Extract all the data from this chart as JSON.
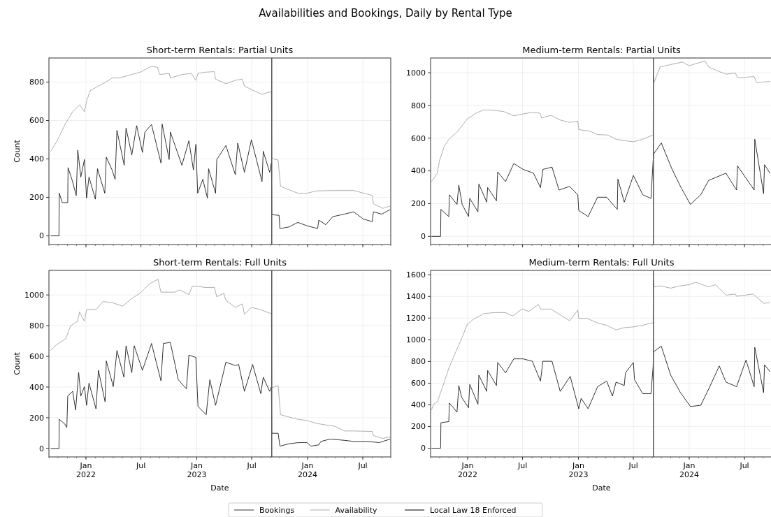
{
  "chart_data": [
    {
      "type": "line",
      "title": "Short-term Rentals: Partial Units",
      "ylabel": "Count",
      "annotations": [
        "Availabilities and Bookings, Daily by Rental Type"
      ],
      "legend": "bottom",
      "grid": true,
      "tick_labels": "y",
      "xlim": [
        "2021-09-01",
        "2024-10-01"
      ],
      "xticks": [
        {
          "value": "2022-01-01",
          "label": null
        },
        {
          "value": "2022-07-01",
          "label": null
        },
        {
          "value": "2023-01-01",
          "label": null
        },
        {
          "value": "2023-07-01",
          "label": null
        },
        {
          "value": "2024-01-01",
          "label": null
        },
        {
          "value": "2024-07-01",
          "label": null
        }
      ],
      "ylim": [
        -45,
        925
      ],
      "yticks": [
        0,
        200,
        400,
        600,
        800
      ],
      "ref_lines": [
        {
          "axis": "x",
          "value": "2023-09-05",
          "label": "Local Law 18 Enforced",
          "color": "#555555"
        }
      ],
      "series": [
        {
          "name": "Bookings",
          "color": "#000000",
          "x": [
            "2021-09-07",
            "2021-10-04",
            "2021-10-05",
            "2021-10-15",
            "2021-11-02",
            "2021-11-03",
            "2021-11-18",
            "2021-11-30",
            "2021-12-05",
            "2021-12-15",
            "2021-12-27",
            "2022-01-03",
            "2022-01-11",
            "2022-02-01",
            "2022-02-08",
            "2022-03-04",
            "2022-03-09",
            "2022-03-28",
            "2022-04-07",
            "2022-04-13",
            "2022-05-07",
            "2022-05-13",
            "2022-06-01",
            "2022-06-17",
            "2022-07-06",
            "2022-07-14",
            "2022-08-05",
            "2022-09-05",
            "2022-09-09",
            "2022-10-02",
            "2022-10-06",
            "2022-11-13",
            "2022-12-06",
            "2022-12-21",
            "2022-12-29",
            "2023-01-04",
            "2023-01-21",
            "2023-02-05",
            "2023-02-09",
            "2023-03-04",
            "2023-03-08",
            "2023-04-07",
            "2023-05-08",
            "2023-05-16",
            "2023-06-07",
            "2023-06-30",
            "2023-08-04",
            "2023-08-08",
            "2023-08-29",
            "2023-09-04",
            "2023-09-05",
            "2023-09-29",
            "2023-10-02",
            "2023-10-31",
            "2023-11-30",
            "2023-12-31",
            "2024-02-03",
            "2024-02-07",
            "2024-03-01",
            "2024-03-24",
            "2024-05-01",
            "2024-06-01",
            "2024-07-02",
            "2024-08-01",
            "2024-08-05",
            "2024-09-01",
            "2024-09-29"
          ],
          "values": [
            0,
            0,
            222,
            173,
            173,
            355,
            282,
            210,
            446,
            306,
            397,
            197,
            306,
            191,
            349,
            222,
            409,
            343,
            294,
            549,
            367,
            561,
            421,
            573,
            434,
            540,
            579,
            379,
            581,
            397,
            540,
            367,
            494,
            343,
            476,
            222,
            294,
            197,
            349,
            222,
            397,
            470,
            318,
            482,
            331,
            500,
            282,
            440,
            331,
            380,
            110,
            107,
            38,
            46,
            70,
            52,
            38,
            82,
            58,
            100,
            113,
            125,
            88,
            74,
            125,
            113,
            137
          ]
        },
        {
          "name": "Availability",
          "color": "#999999",
          "x": [
            "2021-09-07",
            "2021-09-26",
            "2021-10-26",
            "2021-11-18",
            "2021-12-11",
            "2021-12-27",
            "2022-01-03",
            "2022-01-15",
            "2022-02-11",
            "2022-03-05",
            "2022-03-28",
            "2022-04-20",
            "2022-06-01",
            "2022-06-28",
            "2022-08-05",
            "2022-08-25",
            "2022-09-01",
            "2022-10-02",
            "2022-10-06",
            "2022-11-13",
            "2022-12-14",
            "2022-12-29",
            "2023-01-05",
            "2023-01-28",
            "2023-02-28",
            "2023-03-04",
            "2023-04-07",
            "2023-05-08",
            "2023-05-31",
            "2023-06-07",
            "2023-07-08",
            "2023-08-04",
            "2023-08-29",
            "2023-09-04",
            "2023-09-05",
            "2023-09-26",
            "2023-10-04",
            "2023-10-31",
            "2023-11-30",
            "2023-12-31",
            "2024-01-31",
            "2024-04-01",
            "2024-06-01",
            "2024-08-01",
            "2024-08-05",
            "2024-09-05",
            "2024-09-29"
          ],
          "values": [
            440,
            488,
            585,
            645,
            682,
            645,
            700,
            755,
            779,
            797,
            821,
            821,
            839,
            851,
            882,
            876,
            839,
            845,
            821,
            839,
            845,
            809,
            845,
            851,
            854,
            815,
            791,
            809,
            815,
            779,
            755,
            736,
            748,
            748,
            403,
            394,
            258,
            240,
            222,
            222,
            234,
            236,
            236,
            210,
            167,
            143,
            155
          ]
        }
      ]
    },
    {
      "type": "line",
      "title": "Medium-term Rentals: Partial Units",
      "grid": true,
      "tick_labels": "y",
      "xlim": [
        "2021-09-01",
        "2024-10-01"
      ],
      "xticks": [
        {
          "value": "2022-01-01",
          "label": null
        },
        {
          "value": "2022-07-01",
          "label": null
        },
        {
          "value": "2023-01-01",
          "label": null
        },
        {
          "value": "2023-07-01",
          "label": null
        },
        {
          "value": "2024-01-01",
          "label": null
        },
        {
          "value": "2024-07-01",
          "label": null
        }
      ],
      "ylim": [
        -50,
        1090
      ],
      "yticks": [
        0,
        200,
        400,
        600,
        800,
        1000
      ],
      "ref_lines": [
        {
          "axis": "x",
          "value": "2023-09-05",
          "color": "#555555"
        }
      ],
      "series": [
        {
          "color": "#000000",
          "x": [
            "2021-09-04",
            "2021-10-04",
            "2021-10-05",
            "2021-10-31",
            "2021-11-02",
            "2021-11-27",
            "2021-12-03",
            "2021-12-14",
            "2022-01-04",
            "2022-01-08",
            "2022-02-04",
            "2022-02-07",
            "2022-03-05",
            "2022-03-08",
            "2022-04-06",
            "2022-04-10",
            "2022-05-06",
            "2022-06-02",
            "2022-07-03",
            "2022-08-06",
            "2022-08-29",
            "2022-09-06",
            "2022-10-06",
            "2022-10-29",
            "2022-12-03",
            "2022-12-30",
            "2023-01-02",
            "2023-02-02",
            "2023-03-05",
            "2023-04-04",
            "2023-05-09",
            "2023-05-11",
            "2023-06-01",
            "2023-07-01",
            "2023-08-01",
            "2023-08-28",
            "2023-09-04",
            "2023-09-06",
            "2023-10-01",
            "2023-11-04",
            "2023-12-05",
            "2024-01-05",
            "2024-02-08",
            "2024-03-05",
            "2024-05-01",
            "2024-06-05",
            "2024-06-08",
            "2024-08-02",
            "2024-08-04",
            "2024-09-02",
            "2024-09-05",
            "2024-09-23"
          ],
          "values": [
            0,
            0,
            165,
            121,
            254,
            195,
            313,
            195,
            121,
            232,
            150,
            320,
            209,
            298,
            217,
            394,
            335,
            445,
            409,
            386,
            298,
            409,
            423,
            283,
            305,
            254,
            158,
            121,
            239,
            239,
            165,
            350,
            209,
            372,
            254,
            232,
            460,
            504,
            571,
            416,
            298,
            195,
            254,
            342,
            386,
            283,
            431,
            283,
            593,
            261,
            438,
            386
          ]
        },
        {
          "color": "#999999",
          "x": [
            "2021-09-04",
            "2021-09-23",
            "2021-09-30",
            "2021-10-16",
            "2021-10-31",
            "2021-11-27",
            "2021-12-31",
            "2022-01-31",
            "2022-02-23",
            "2022-03-29",
            "2022-04-29",
            "2022-06-02",
            "2022-07-03",
            "2022-08-02",
            "2022-08-28",
            "2022-09-02",
            "2022-10-03",
            "2022-11-02",
            "2022-12-03",
            "2022-12-30",
            "2023-01-02",
            "2023-02-06",
            "2023-03-05",
            "2023-04-08",
            "2023-05-05",
            "2023-06-01",
            "2023-07-01",
            "2023-08-01",
            "2023-08-28",
            "2023-09-04",
            "2023-09-05",
            "2023-09-07",
            "2023-09-27",
            "2023-11-01",
            "2023-12-09",
            "2024-01-01",
            "2024-02-22",
            "2024-03-05",
            "2024-04-01",
            "2024-05-01",
            "2024-06-01",
            "2024-06-08",
            "2024-08-02",
            "2024-08-10",
            "2024-09-23"
          ],
          "values": [
            335,
            386,
            460,
            549,
            593,
            637,
            718,
            755,
            773,
            770,
            763,
            737,
            748,
            758,
            752,
            723,
            740,
            711,
            696,
            704,
            652,
            644,
            622,
            619,
            593,
            585,
            578,
            593,
            615,
            615,
            976,
            939,
            1035,
            1050,
            1065,
            1043,
            1072,
            1035,
            1013,
            991,
            998,
            969,
            976,
            939,
            947
          ]
        }
      ]
    },
    {
      "type": "line",
      "title": "Short-term Rentals: Full Units",
      "xlabel": "Date",
      "ylabel": "Count",
      "grid": true,
      "xlim": [
        "2021-09-01",
        "2024-10-01"
      ],
      "xticks": [
        {
          "value": "2022-01-01",
          "label": "Jan\n2022"
        },
        {
          "value": "2022-07-01",
          "label": "Jul"
        },
        {
          "value": "2023-01-01",
          "label": "Jan\n2023"
        },
        {
          "value": "2023-07-01",
          "label": "Jul"
        },
        {
          "value": "2024-01-01",
          "label": "Jan\n2024"
        },
        {
          "value": "2024-07-01",
          "label": "Jul"
        }
      ],
      "ylim": [
        -55,
        1160
      ],
      "yticks": [
        0,
        200,
        400,
        600,
        800,
        1000
      ],
      "ref_lines": [
        {
          "axis": "x",
          "value": "2023-09-05",
          "color": "#555555"
        }
      ],
      "series": [
        {
          "color": "#000000",
          "x": [
            "2021-09-07",
            "2021-10-04",
            "2021-10-05",
            "2021-10-23",
            "2021-10-30",
            "2021-11-02",
            "2021-11-18",
            "2021-11-28",
            "2021-12-08",
            "2021-12-15",
            "2021-12-27",
            "2022-01-03",
            "2022-01-11",
            "2022-02-03",
            "2022-02-11",
            "2022-03-05",
            "2022-03-09",
            "2022-04-01",
            "2022-04-13",
            "2022-05-06",
            "2022-05-13",
            "2022-06-01",
            "2022-06-09",
            "2022-07-06",
            "2022-08-05",
            "2022-09-05",
            "2022-09-13",
            "2022-10-06",
            "2022-11-01",
            "2022-11-28",
            "2022-12-06",
            "2022-12-29",
            "2023-01-05",
            "2023-02-01",
            "2023-02-13",
            "2023-03-04",
            "2023-04-07",
            "2023-05-08",
            "2023-05-19",
            "2023-06-07",
            "2023-07-04",
            "2023-07-31",
            "2023-08-08",
            "2023-08-29",
            "2023-09-04",
            "2023-09-05",
            "2023-09-26",
            "2023-10-02",
            "2023-10-31",
            "2023-11-30",
            "2023-12-31",
            "2024-01-11",
            "2024-02-07",
            "2024-02-14",
            "2024-03-16",
            "2024-05-01",
            "2024-06-01",
            "2024-07-17",
            "2024-08-24",
            "2024-09-29"
          ],
          "values": [
            0,
            0,
            190,
            160,
            137,
            342,
            372,
            251,
            494,
            342,
            403,
            281,
            426,
            258,
            509,
            304,
            570,
            403,
            638,
            464,
            669,
            494,
            669,
            509,
            684,
            441,
            684,
            691,
            448,
            388,
            608,
            593,
            274,
            220,
            448,
            281,
            562,
            540,
            547,
            372,
            547,
            357,
            464,
            372,
            400,
            99,
            99,
            15,
            30,
            38,
            38,
            15,
            23,
            46,
            61,
            53,
            46,
            46,
            38,
            61
          ]
        },
        {
          "color": "#999999",
          "x": [
            "2021-09-07",
            "2021-09-26",
            "2021-10-26",
            "2021-11-11",
            "2021-12-04",
            "2021-12-11",
            "2021-12-27",
            "2022-01-03",
            "2022-02-03",
            "2022-02-26",
            "2022-03-28",
            "2022-05-02",
            "2022-05-29",
            "2022-06-28",
            "2022-07-29",
            "2022-08-26",
            "2022-09-05",
            "2022-10-21",
            "2022-11-05",
            "2022-12-06",
            "2022-12-17",
            "2023-01-02",
            "2023-01-28",
            "2023-02-28",
            "2023-03-08",
            "2023-03-31",
            "2023-04-07",
            "2023-05-08",
            "2023-05-31",
            "2023-06-07",
            "2023-06-30",
            "2023-07-31",
            "2023-08-29",
            "2023-09-04",
            "2023-09-05",
            "2023-09-26",
            "2023-10-04",
            "2023-10-31",
            "2023-11-30",
            "2023-12-31",
            "2024-01-31",
            "2024-04-01",
            "2024-05-01",
            "2024-06-01",
            "2024-08-01",
            "2024-08-05",
            "2024-09-05",
            "2024-09-29"
          ],
          "values": [
            638,
            676,
            714,
            798,
            828,
            889,
            828,
            904,
            904,
            957,
            950,
            927,
            973,
            1011,
            1071,
            1102,
            1018,
            1018,
            1033,
            1003,
            1056,
            1056,
            1049,
            1049,
            988,
            1011,
            965,
            919,
            942,
            874,
            919,
            904,
            881,
            881,
            395,
            410,
            220,
            205,
            190,
            182,
            163,
            144,
            114,
            114,
            111,
            84,
            65,
            76
          ]
        }
      ]
    },
    {
      "type": "line",
      "title": "Medium-term Rentals: Full Units",
      "xlabel": "Date",
      "grid": true,
      "xlim": [
        "2021-09-01",
        "2024-10-01"
      ],
      "xticks": [
        {
          "value": "2022-01-01",
          "label": "Jan\n2022"
        },
        {
          "value": "2022-07-01",
          "label": "Jul"
        },
        {
          "value": "2023-01-01",
          "label": "Jan\n2023"
        },
        {
          "value": "2023-07-01",
          "label": "Jul"
        },
        {
          "value": "2024-01-01",
          "label": "Jan\n2024"
        },
        {
          "value": "2024-07-01",
          "label": "Jul"
        }
      ],
      "ylim": [
        -80,
        1640
      ],
      "yticks": [
        0,
        200,
        400,
        600,
        800,
        1000,
        1200,
        1400,
        1600
      ],
      "ref_lines": [
        {
          "axis": "x",
          "value": "2023-09-05",
          "color": "#555555"
        }
      ],
      "series": [
        {
          "color": "#000000",
          "x": [
            "2021-09-04",
            "2021-10-04",
            "2021-10-05",
            "2021-10-31",
            "2021-11-02",
            "2021-11-27",
            "2021-12-03",
            "2021-12-12",
            "2022-01-04",
            "2022-01-08",
            "2022-02-04",
            "2022-02-07",
            "2022-03-05",
            "2022-03-08",
            "2022-04-06",
            "2022-04-10",
            "2022-05-06",
            "2022-06-02",
            "2022-07-03",
            "2022-08-02",
            "2022-08-29",
            "2022-09-06",
            "2022-10-06",
            "2022-11-02",
            "2022-12-05",
            "2023-01-02",
            "2023-01-10",
            "2023-02-02",
            "2023-03-05",
            "2023-04-04",
            "2023-04-23",
            "2023-05-05",
            "2023-06-01",
            "2023-06-05",
            "2023-07-01",
            "2023-07-05",
            "2023-08-01",
            "2023-08-28",
            "2023-09-04",
            "2023-09-05",
            "2023-10-01",
            "2023-11-01",
            "2023-12-03",
            "2024-01-05",
            "2024-02-08",
            "2024-03-05",
            "2024-04-09",
            "2024-05-01",
            "2024-06-05",
            "2024-07-06",
            "2024-08-02",
            "2024-08-04",
            "2024-09-02",
            "2024-09-05",
            "2024-09-23"
          ],
          "values": [
            0,
            0,
            235,
            246,
            417,
            332,
            578,
            471,
            374,
            588,
            406,
            674,
            524,
            717,
            578,
            791,
            695,
            824,
            824,
            802,
            620,
            802,
            802,
            524,
            663,
            364,
            460,
            364,
            567,
            620,
            481,
            610,
            578,
            695,
            791,
            631,
            503,
            503,
            749,
            888,
            941,
            674,
            513,
            385,
            396,
            545,
            759,
            610,
            567,
            813,
            567,
            930,
            513,
            770,
            706
          ]
        },
        {
          "color": "#999999",
          "x": [
            "2021-09-04",
            "2021-09-11",
            "2021-09-23",
            "2021-10-04",
            "2021-10-16",
            "2021-10-31",
            "2021-11-23",
            "2021-12-16",
            "2021-12-31",
            "2022-01-19",
            "2022-02-23",
            "2022-03-29",
            "2022-05-06",
            "2022-05-29",
            "2022-06-29",
            "2022-07-22",
            "2022-08-22",
            "2022-08-30",
            "2022-10-03",
            "2022-11-02",
            "2022-12-03",
            "2022-12-30",
            "2023-01-02",
            "2023-01-29",
            "2023-03-05",
            "2023-04-04",
            "2023-05-05",
            "2023-06-01",
            "2023-07-01",
            "2023-08-01",
            "2023-08-28",
            "2023-09-04",
            "2023-09-05",
            "2023-09-07",
            "2023-09-28",
            "2023-11-01",
            "2023-12-01",
            "2024-01-01",
            "2024-01-23",
            "2024-03-05",
            "2024-03-28",
            "2024-05-01",
            "2024-06-01",
            "2024-06-05",
            "2024-07-29",
            "2024-09-02",
            "2024-09-23"
          ],
          "values": [
            353,
            406,
            428,
            513,
            610,
            738,
            888,
            1037,
            1144,
            1187,
            1241,
            1251,
            1251,
            1219,
            1283,
            1262,
            1326,
            1283,
            1283,
            1230,
            1176,
            1273,
            1198,
            1198,
            1155,
            1134,
            1091,
            1112,
            1119,
            1134,
            1155,
            1155,
            1551,
            1487,
            1497,
            1476,
            1497,
            1508,
            1530,
            1487,
            1508,
            1412,
            1422,
            1401,
            1422,
            1337,
            1341
          ]
        }
      ]
    }
  ]
}
